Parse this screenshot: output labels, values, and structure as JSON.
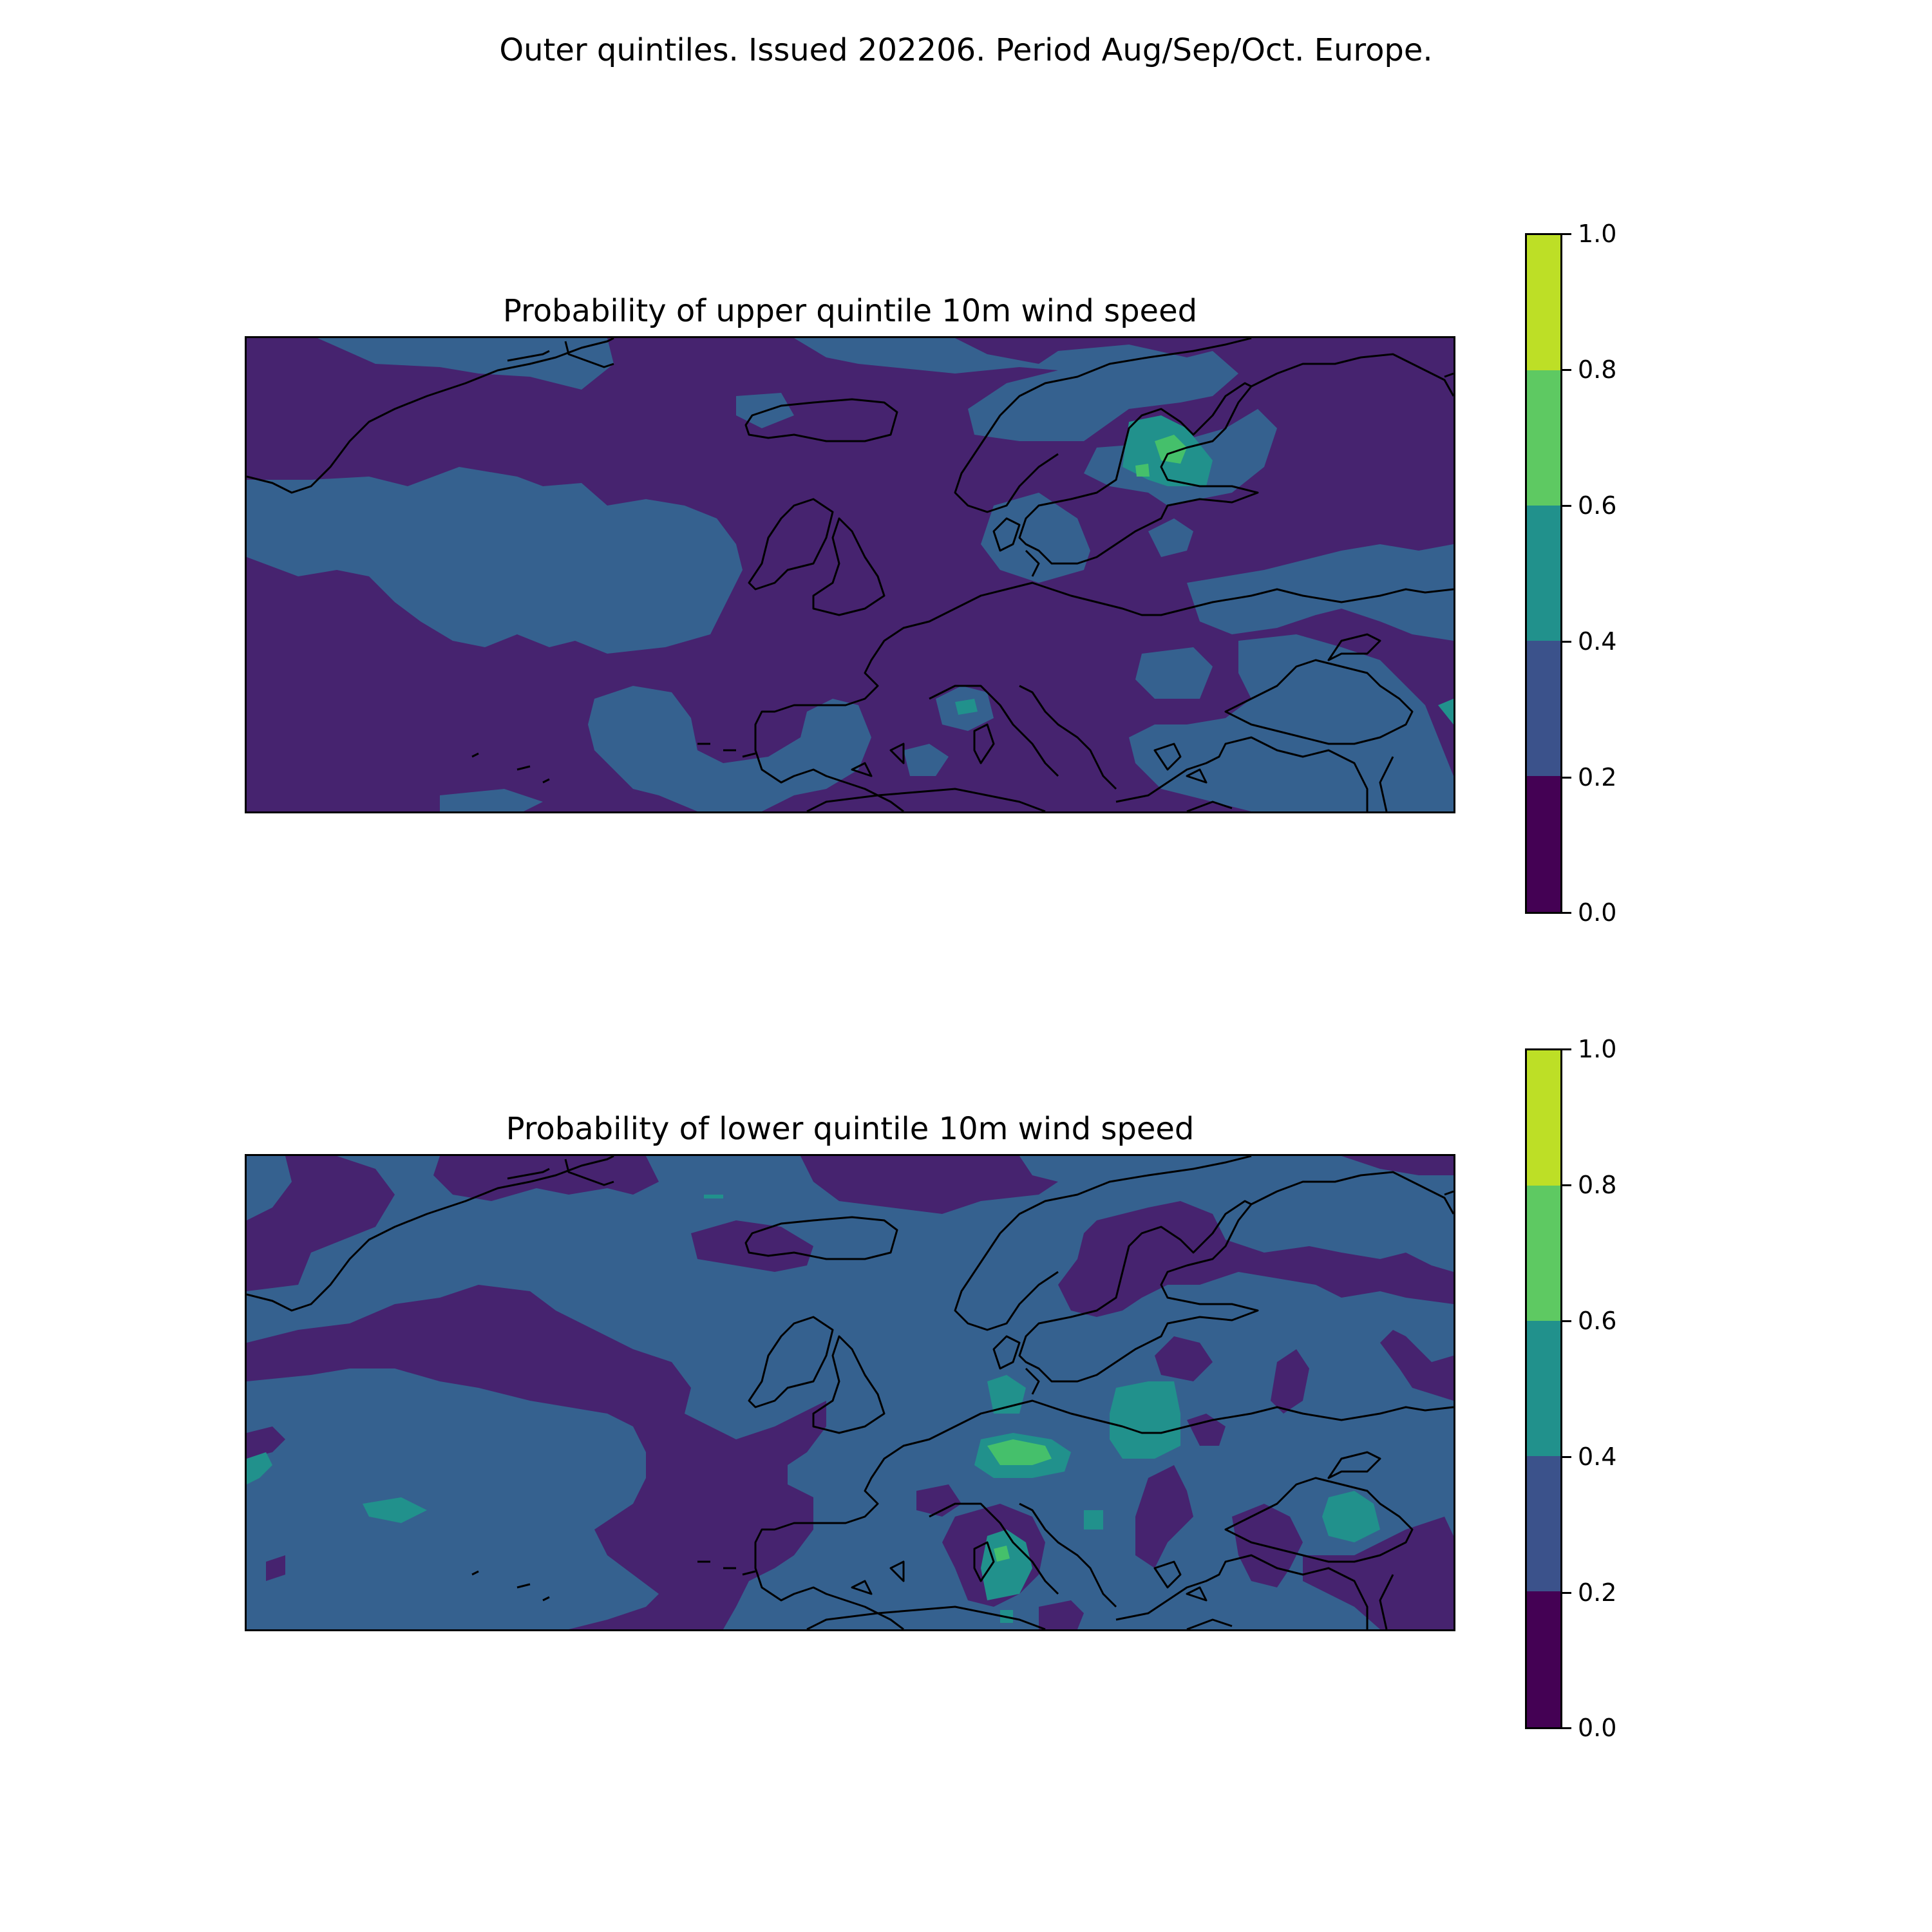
{
  "suptitle": "Outer quintiles. Issued 202206. Period Aug/Sep/Oct. Europe.",
  "colormap": [
    "#440154",
    "#3b528b",
    "#21918c",
    "#5ec962",
    "#bddf26"
  ],
  "panel_colors": [
    "#46236f",
    "#35618f",
    "#21918c",
    "#45c06b",
    "#bddf26"
  ],
  "coastline_color": "#000000",
  "panels": [
    {
      "title": "Probability of upper quintile 10m wind speed",
      "variable": "10m wind speed",
      "quintile": "upper",
      "colorbar": {
        "levels": [
          0.0,
          0.2,
          0.4,
          0.6,
          0.8,
          1.0
        ],
        "tick_labels": [
          "0.0",
          "0.2",
          "0.4",
          "0.6",
          "0.8",
          "1.0"
        ]
      }
    },
    {
      "title": "Probability of lower quintile 10m wind speed",
      "variable": "10m wind speed",
      "quintile": "lower",
      "colorbar": {
        "levels": [
          0.0,
          0.2,
          0.4,
          0.6,
          0.8,
          1.0
        ],
        "tick_labels": [
          "0.0",
          "0.2",
          "0.4",
          "0.6",
          "0.8",
          "1.0"
        ]
      }
    }
  ]
}
